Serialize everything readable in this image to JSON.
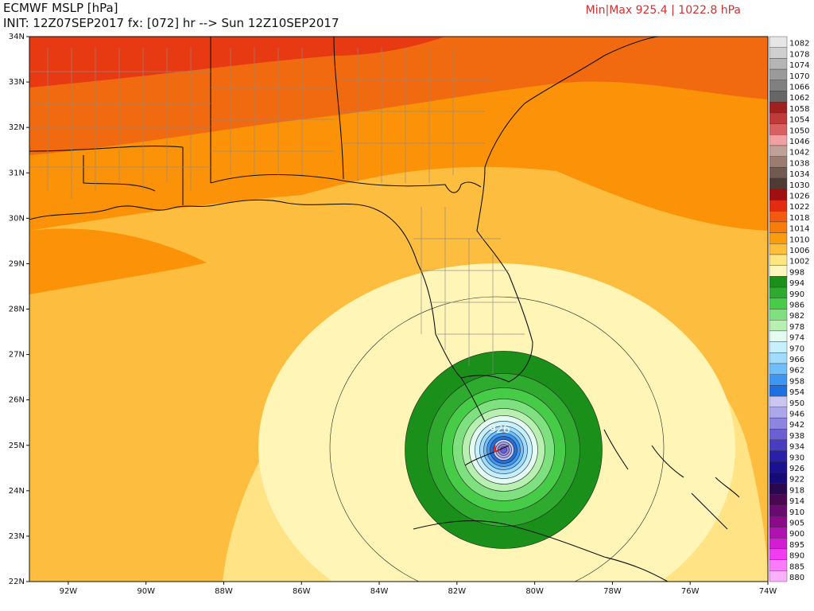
{
  "header": {
    "title": "ECMWF MSLP [hPa]",
    "init_line": "INIT: 12Z07SEP2017 fx: [072] hr --> Sun 12Z10SEP2017",
    "minmax": "Min|Max 925.4 | 1022.8 hPa"
  },
  "map_labels": {
    "center_pressure": "926",
    "low_marker": "L"
  },
  "axes": {
    "lat_ticks": [
      "34N",
      "33N",
      "32N",
      "31N",
      "30N",
      "29N",
      "28N",
      "27N",
      "26N",
      "25N",
      "24N",
      "23N",
      "22N"
    ],
    "lon_ticks": [
      "92W",
      "90W",
      "88W",
      "86W",
      "84W",
      "82W",
      "80W",
      "78W",
      "76W",
      "74W"
    ]
  },
  "colorbar": {
    "levels": [
      {
        "label": "1082",
        "color": "#e6e6e6"
      },
      {
        "label": "1078",
        "color": "#cfcfcf"
      },
      {
        "label": "1074",
        "color": "#b5b5b5"
      },
      {
        "label": "1070",
        "color": "#9a9a9a"
      },
      {
        "label": "1066",
        "color": "#808080"
      },
      {
        "label": "1062",
        "color": "#666666"
      },
      {
        "label": "1058",
        "color": "#a02020"
      },
      {
        "label": "1054",
        "color": "#c03a3a"
      },
      {
        "label": "1050",
        "color": "#d96060"
      },
      {
        "label": "1046",
        "color": "#f0a0a0"
      },
      {
        "label": "1042",
        "color": "#c0a098"
      },
      {
        "label": "1038",
        "color": "#9c7c70"
      },
      {
        "label": "1034",
        "color": "#735a50"
      },
      {
        "label": "1030",
        "color": "#503a34"
      },
      {
        "label": "1026",
        "color": "#a01010"
      },
      {
        "label": "1022",
        "color": "#e32a12"
      },
      {
        "label": "1018",
        "color": "#f25a10"
      },
      {
        "label": "1014",
        "color": "#f77c0a"
      },
      {
        "label": "1010",
        "color": "#fb9c0c"
      },
      {
        "label": "1006",
        "color": "#fdbf3a"
      },
      {
        "label": "1002",
        "color": "#ffe680"
      },
      {
        "label": "998",
        "color": "#fff7bd"
      },
      {
        "label": "994",
        "color": "#1a8f1a"
      },
      {
        "label": "990",
        "color": "#2eaa2e"
      },
      {
        "label": "986",
        "color": "#46cc46"
      },
      {
        "label": "982",
        "color": "#7ee07e"
      },
      {
        "label": "978",
        "color": "#b7f0b0"
      },
      {
        "label": "974",
        "color": "#e3fbf0"
      },
      {
        "label": "970",
        "color": "#c6f0ff"
      },
      {
        "label": "966",
        "color": "#9fdcff"
      },
      {
        "label": "962",
        "color": "#6fbfff"
      },
      {
        "label": "958",
        "color": "#3f96f2"
      },
      {
        "label": "954",
        "color": "#1e6fe0"
      },
      {
        "label": "950",
        "color": "#c9c6f2"
      },
      {
        "label": "946",
        "color": "#aca6ea"
      },
      {
        "label": "942",
        "color": "#8d85e0"
      },
      {
        "label": "938",
        "color": "#6c5fd2"
      },
      {
        "label": "934",
        "color": "#4a3cc0"
      },
      {
        "label": "930",
        "color": "#2a20a8"
      },
      {
        "label": "926",
        "color": "#1a1090"
      },
      {
        "label": "922",
        "color": "#150a78"
      },
      {
        "label": "918",
        "color": "#2a0850"
      },
      {
        "label": "914",
        "color": "#4a0850"
      },
      {
        "label": "910",
        "color": "#6a0a70"
      },
      {
        "label": "905",
        "color": "#8a0a8a"
      },
      {
        "label": "900",
        "color": "#b012b0"
      },
      {
        "label": "895",
        "color": "#d21ed2"
      },
      {
        "label": "890",
        "color": "#f23cf2"
      },
      {
        "label": "885",
        "color": "#fb7cfb"
      },
      {
        "label": "880",
        "color": "#fcb0fc"
      }
    ]
  },
  "field": {
    "low_center_lon": -80.8,
    "low_center_lat": 24.9,
    "background_bands": [
      {
        "label": "1018",
        "color": "#e83a12"
      },
      {
        "label": "1014",
        "color": "#f26a10"
      },
      {
        "label": "1010",
        "color": "#fb9208"
      },
      {
        "label": "1006",
        "color": "#fdbd3e"
      },
      {
        "label": "1002",
        "color": "#ffe384"
      },
      {
        "label": "998",
        "color": "#fff5b6"
      }
    ]
  }
}
